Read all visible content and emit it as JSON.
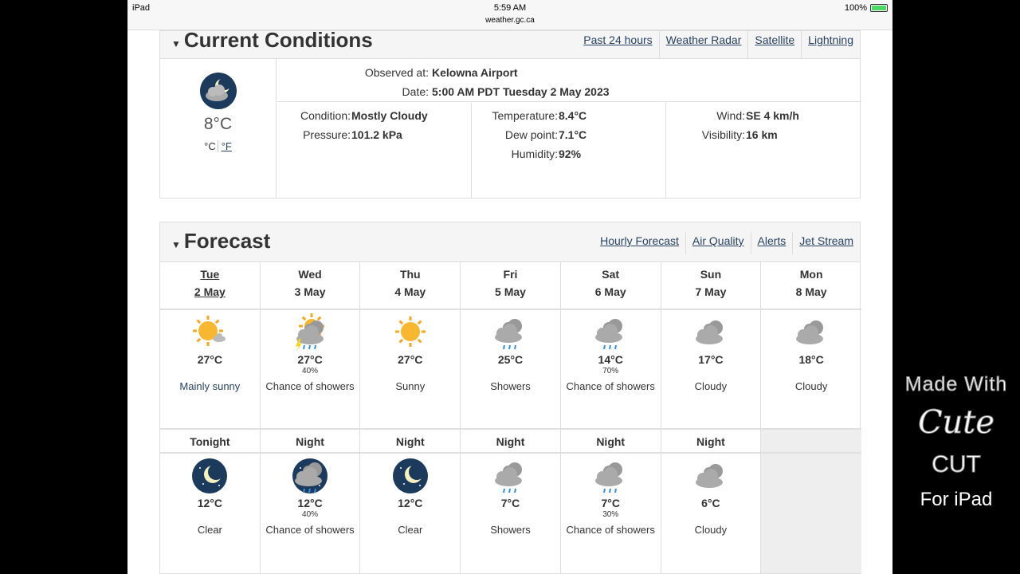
{
  "status": {
    "device": "iPad",
    "time": "5:59 AM",
    "url": "weather.gc.ca",
    "battery": "100%"
  },
  "current": {
    "title": "Current Conditions",
    "links": [
      "Past 24 hours",
      "Weather Radar",
      "Satellite",
      "Lightning"
    ],
    "icon": "moon-cloud",
    "temp": "8°C",
    "unit_c": "°C",
    "unit_f": "°F",
    "observed_label": "Observed at:",
    "observed": "Kelowna Airport",
    "date_label": "Date:",
    "date": "5:00 AM PDT Tuesday 2 May 2023",
    "condition_label": "Condition:",
    "condition": "Mostly Cloudy",
    "pressure_label": "Pressure:",
    "pressure": "101.2 kPa",
    "temperature_label": "Temperature:",
    "temperature": "8.4°C",
    "dew_label": "Dew point:",
    "dew": "7.1°C",
    "humidity_label": "Humidity:",
    "humidity": "92%",
    "wind_label": "Wind:",
    "wind": "SE 4 km/h",
    "visibility_label": "Visibility:",
    "visibility": "16 km"
  },
  "forecast": {
    "title": "Forecast",
    "links": [
      "Hourly Forecast",
      "Air Quality",
      "Alerts",
      "Jet Stream"
    ],
    "days": [
      {
        "day": "Tue",
        "date": "2 May",
        "icon": "sun-cloud",
        "temp": "27°C",
        "pop": "",
        "summary": "Mainly sunny"
      },
      {
        "day": "Wed",
        "date": "3 May",
        "icon": "sun-storm",
        "temp": "27°C",
        "pop": "40%",
        "summary": "Chance of showers"
      },
      {
        "day": "Thu",
        "date": "4 May",
        "icon": "sun",
        "temp": "27°C",
        "pop": "",
        "summary": "Sunny"
      },
      {
        "day": "Fri",
        "date": "5 May",
        "icon": "rain",
        "temp": "25°C",
        "pop": "",
        "summary": "Showers"
      },
      {
        "day": "Sat",
        "date": "6 May",
        "icon": "rain",
        "temp": "14°C",
        "pop": "70%",
        "summary": "Chance of showers"
      },
      {
        "day": "Sun",
        "date": "7 May",
        "icon": "cloud",
        "temp": "17°C",
        "pop": "",
        "summary": "Cloudy"
      },
      {
        "day": "Mon",
        "date": "8 May",
        "icon": "cloud",
        "temp": "18°C",
        "pop": "",
        "summary": "Cloudy"
      }
    ],
    "nights": [
      {
        "label": "Tonight",
        "icon": "moon",
        "temp": "12°C",
        "pop": "",
        "summary": "Clear"
      },
      {
        "label": "Night",
        "icon": "moon-rain",
        "temp": "12°C",
        "pop": "40%",
        "summary": "Chance of showers"
      },
      {
        "label": "Night",
        "icon": "moon",
        "temp": "12°C",
        "pop": "",
        "summary": "Clear"
      },
      {
        "label": "Night",
        "icon": "rain",
        "temp": "7°C",
        "pop": "",
        "summary": "Showers"
      },
      {
        "label": "Night",
        "icon": "rain",
        "temp": "7°C",
        "pop": "30%",
        "summary": "Chance of showers"
      },
      {
        "label": "Night",
        "icon": "cloud",
        "temp": "6°C",
        "pop": "",
        "summary": "Cloudy"
      }
    ]
  },
  "watermark": {
    "made_with": "Made With",
    "cute": "Cute",
    "cut": "CUT",
    "for_ipad": "For iPad"
  }
}
